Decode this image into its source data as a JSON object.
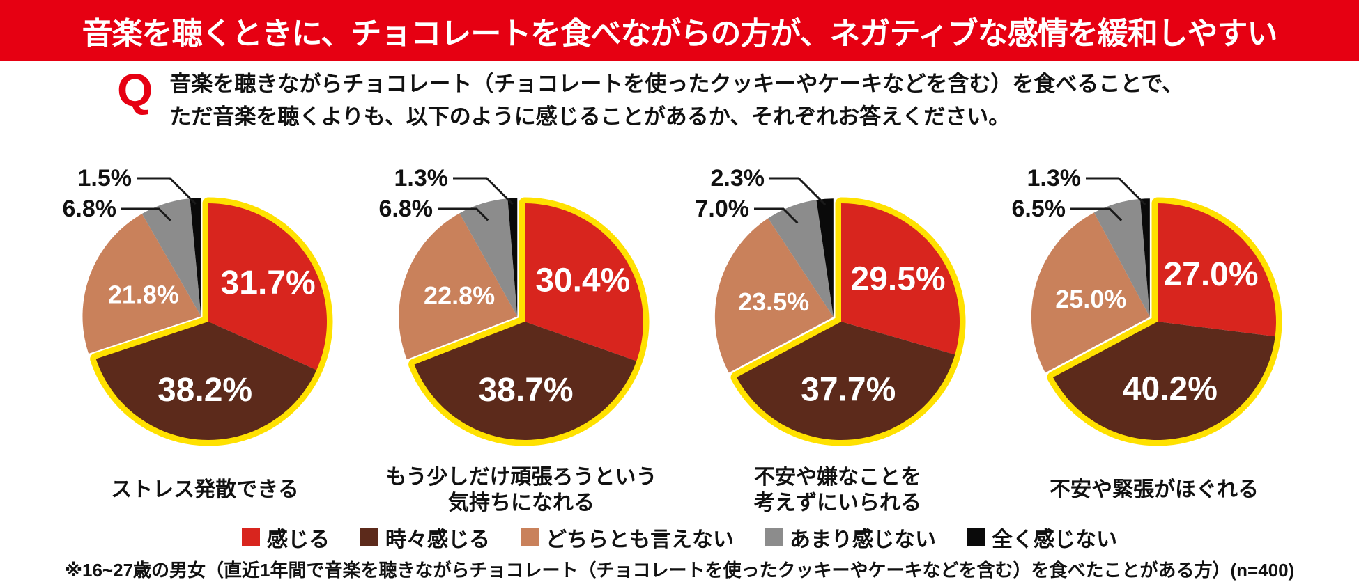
{
  "header": {
    "title": "音楽を聴くときに、チョコレートを食べながらの方が、ネガティブな感情を緩和しやすい"
  },
  "question": {
    "mark": "Q",
    "line1": "音楽を聴きながらチョコレート（チョコレートを使ったクッキーやケーキなどを含む）を食べることで、",
    "line2": "ただ音楽を聴くよりも、以下のように感じることがあるか、それぞれお答えください。"
  },
  "legend": {
    "items": [
      {
        "label": "感じる",
        "color": "#D8251E"
      },
      {
        "label": "時々感じる",
        "color": "#5C2A1B"
      },
      {
        "label": "どちらとも言えない",
        "color": "#C9815B"
      },
      {
        "label": "あまり感じない",
        "color": "#8C8C8C"
      },
      {
        "label": "全く感じない",
        "color": "#0A0A0A"
      }
    ]
  },
  "colors": {
    "banner_bg": "#E60012",
    "banner_text": "#ffffff",
    "q_mark": "#E60012",
    "highlight_yellow": "#FFE100",
    "callout_line": "#1a1a1a",
    "label_inside": "#ffffff",
    "label_outside": "#111111"
  },
  "chart_data": [
    {
      "type": "pie",
      "title": "ストレス発散できる",
      "unit": "%",
      "categories": [
        "感じる",
        "時々感じる",
        "どちらとも言えない",
        "あまり感じない",
        "全く感じない"
      ],
      "values": [
        31.7,
        38.2,
        21.8,
        6.8,
        1.5
      ],
      "slice_colors": [
        "#D8251E",
        "#5C2A1B",
        "#C9815B",
        "#8C8C8C",
        "#0A0A0A"
      ],
      "highlight": {
        "categories": [
          "感じる",
          "時々感じる"
        ],
        "style": "yellow-outline-exploded"
      }
    },
    {
      "type": "pie",
      "title": "もう少しだけ頑張ろうという\n気持ちになれる",
      "unit": "%",
      "categories": [
        "感じる",
        "時々感じる",
        "どちらとも言えない",
        "あまり感じない",
        "全く感じない"
      ],
      "values": [
        30.4,
        38.7,
        22.8,
        6.8,
        1.3
      ],
      "slice_colors": [
        "#D8251E",
        "#5C2A1B",
        "#C9815B",
        "#8C8C8C",
        "#0A0A0A"
      ],
      "highlight": {
        "categories": [
          "感じる",
          "時々感じる"
        ],
        "style": "yellow-outline-exploded"
      }
    },
    {
      "type": "pie",
      "title": "不安や嫌なことを\n考えずにいられる",
      "unit": "%",
      "categories": [
        "感じる",
        "時々感じる",
        "どちらとも言えない",
        "あまり感じない",
        "全く感じない"
      ],
      "values": [
        29.5,
        37.7,
        23.5,
        7.0,
        2.3
      ],
      "slice_colors": [
        "#D8251E",
        "#5C2A1B",
        "#C9815B",
        "#8C8C8C",
        "#0A0A0A"
      ],
      "highlight": {
        "categories": [
          "感じる",
          "時々感じる"
        ],
        "style": "yellow-outline-exploded"
      }
    },
    {
      "type": "pie",
      "title": "不安や緊張がほぐれる",
      "unit": "%",
      "categories": [
        "感じる",
        "時々感じる",
        "どちらとも言えない",
        "あまり感じない",
        "全く感じない"
      ],
      "values": [
        27.0,
        40.2,
        25.0,
        6.5,
        1.3
      ],
      "slice_colors": [
        "#D8251E",
        "#5C2A1B",
        "#C9815B",
        "#8C8C8C",
        "#0A0A0A"
      ],
      "highlight": {
        "categories": [
          "感じる",
          "時々感じる"
        ],
        "style": "yellow-outline-exploded"
      }
    }
  ],
  "footnote": "※16~27歳の男女（直近1年間で音楽を聴きながらチョコレート（チョコレートを使ったクッキーやケーキなどを含む）を食べたことがある方）(n=400)"
}
